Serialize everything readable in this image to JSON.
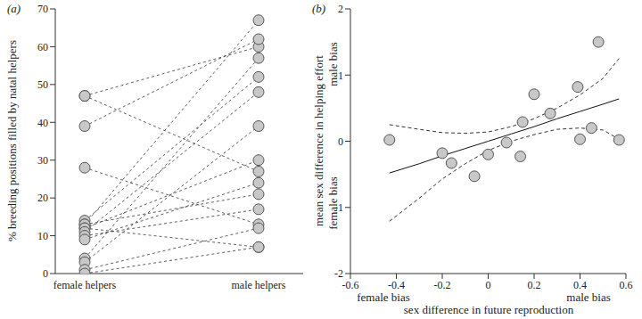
{
  "chart_data": [
    {
      "type": "line",
      "title": "(a)",
      "y_label": "% breeding positions filled by natal helpers",
      "categories": [
        "female helpers",
        "male helpers"
      ],
      "series": [
        {
          "values": [
            47,
            60
          ]
        },
        {
          "values": [
            47,
            27
          ]
        },
        {
          "values": [
            39,
            62
          ]
        },
        {
          "values": [
            28,
            13
          ]
        },
        {
          "values": [
            14,
            52
          ]
        },
        {
          "values": [
            13,
            67
          ]
        },
        {
          "values": [
            13,
            21
          ]
        },
        {
          "values": [
            12,
            30
          ]
        },
        {
          "values": [
            12,
            7
          ]
        },
        {
          "values": [
            11,
            48
          ]
        },
        {
          "values": [
            10,
            17
          ]
        },
        {
          "values": [
            9,
            24
          ]
        },
        {
          "values": [
            4,
            57
          ]
        },
        {
          "values": [
            3,
            39
          ]
        },
        {
          "values": [
            1,
            12
          ]
        },
        {
          "values": [
            0,
            7
          ]
        }
      ],
      "color": "#c8c8c8",
      "marker": "circle",
      "line_style": "dashed",
      "ylim": [
        0,
        70
      ],
      "yticks": [
        0,
        10,
        20,
        30,
        40,
        50,
        60,
        70
      ]
    },
    {
      "type": "scatter",
      "title": "(b)",
      "x_label": "sex difference in future reproduction",
      "y_label": "mean sex difference in helping effort",
      "x_end_labels": [
        "female bias",
        "male bias"
      ],
      "y_end_labels": [
        "female bias",
        "male bias"
      ],
      "x": [
        -0.43,
        -0.2,
        -0.16,
        -0.06,
        0,
        0.08,
        0.14,
        0.15,
        0.2,
        0.27,
        0.39,
        0.4,
        0.45,
        0.48,
        0.57
      ],
      "y": [
        0.02,
        -0.18,
        -0.33,
        -0.53,
        -0.2,
        -0.02,
        -0.23,
        0.29,
        0.71,
        0.42,
        0.82,
        0.03,
        0.2,
        1.5,
        0.02
      ],
      "fit": {
        "x": [
          -0.43,
          -0.3,
          -0.2,
          -0.1,
          0,
          0.1,
          0.2,
          0.3,
          0.4,
          0.5,
          0.57
        ],
        "y": [
          -0.48,
          -0.34,
          -0.22,
          -0.11,
          0,
          0.11,
          0.22,
          0.34,
          0.45,
          0.56,
          0.64
        ],
        "lower": [
          -1.21,
          -0.86,
          -0.57,
          -0.34,
          -0.14,
          0,
          0.1,
          0.18,
          0.2,
          0.17,
          0.03
        ],
        "upper": [
          0.25,
          0.18,
          0.13,
          0.12,
          0.14,
          0.22,
          0.34,
          0.5,
          0.7,
          0.95,
          1.25
        ]
      },
      "color": "#c8c8c8",
      "marker": "circle",
      "xlim": [
        -0.6,
        0.6
      ],
      "xticks": [
        -0.6,
        -0.4,
        -0.2,
        0,
        0.2,
        0.4,
        0.6
      ],
      "ylim": [
        -2,
        2
      ],
      "yticks": [
        -2,
        -1,
        0,
        1,
        2
      ]
    }
  ]
}
